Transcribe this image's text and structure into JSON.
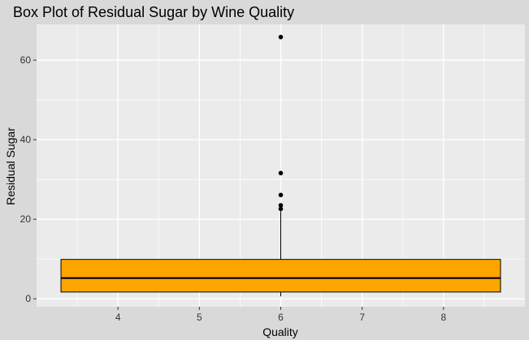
{
  "chart_data": {
    "type": "boxplot",
    "title": "Box Plot of Residual Sugar by Wine Quality",
    "xlabel": "Quality",
    "ylabel": "Residual Sugar",
    "xlim": [
      3.0,
      9.0
    ],
    "ylim": [
      -2,
      69
    ],
    "x_ticks": [
      4,
      5,
      6,
      7,
      8
    ],
    "y_ticks": [
      0,
      20,
      40,
      60
    ],
    "grid": true,
    "box": {
      "x_center": 6,
      "x_start": 3.3,
      "x_end": 8.7,
      "lower_whisker": 0.6,
      "q1": 1.7,
      "median": 5.2,
      "q3": 9.9,
      "upper_whisker": 22.0,
      "fill": "#FFA500",
      "stroke": "#000000"
    },
    "outliers": [
      22.6,
      23.5,
      26.1,
      31.6,
      65.8
    ]
  },
  "colors": {
    "page_background": "#d9d9d9",
    "panel_background": "#ebebeb",
    "grid": "#ffffff"
  }
}
